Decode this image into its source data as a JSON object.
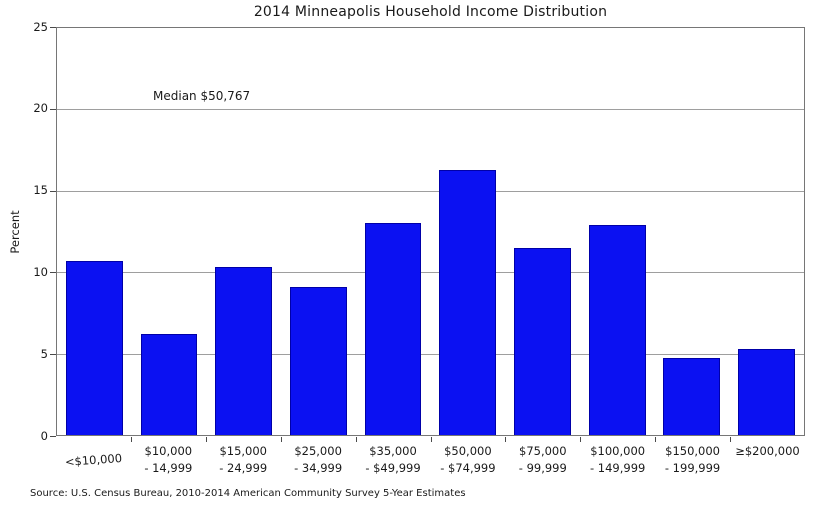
{
  "title": "2014 Minneapolis Household Income Distribution",
  "ylabel": "Percent",
  "annotation": "Median $50,767",
  "source": "Source: U.S. Census Bureau, 2010-2014 American Community Survey 5-Year Estimates",
  "colors": {
    "background": "#ffffff",
    "bar_fill": "#0b11f2",
    "bar_edge": "#0000a8",
    "gridline": "#9e9e9e",
    "spine": "#767676",
    "text": "#1a1a1a"
  },
  "chart_data": {
    "type": "bar",
    "title": "2014 Minneapolis Household Income Distribution",
    "xlabel": "",
    "ylabel": "Percent",
    "ylim": [
      0,
      25
    ],
    "yticks": [
      0,
      5,
      10,
      15,
      20,
      25
    ],
    "grid": "horizontal-only",
    "legend": "none",
    "annotation": "Median $50,767",
    "source_note": "Source: U.S. Census Bureau, 2010-2014 American Community Survey 5-Year Estimates",
    "categories": [
      "<$10,000",
      "$10,000 - 14,999",
      "$15,000 - 24,999",
      "$25,000 - 34,999",
      "$35,000 - $49,999",
      "$50,000 - $74,999",
      "$75,000 - 99,999",
      "$100,000 - 149,999",
      "$150,000 - 199,999",
      "≥$200,000"
    ],
    "category_label_lines": [
      [
        "<$10,000"
      ],
      [
        "$10,000",
        "- 14,999"
      ],
      [
        "$15,000",
        "- 24,999"
      ],
      [
        "$25,000",
        "- 34,999"
      ],
      [
        "$35,000",
        "- $49,999"
      ],
      [
        "$50,000",
        "- $74,999"
      ],
      [
        "$75,000",
        "- 99,999"
      ],
      [
        "$100,000",
        "- 149,999"
      ],
      [
        "$150,000",
        "- 199,999"
      ],
      [
        "≥$200,000"
      ]
    ],
    "values": [
      10.7,
      6.2,
      10.3,
      9.1,
      13.0,
      16.3,
      11.5,
      12.9,
      4.7,
      5.3
    ],
    "bar_color": "#0b11f2",
    "bar_edge_color": "#0000a8"
  }
}
